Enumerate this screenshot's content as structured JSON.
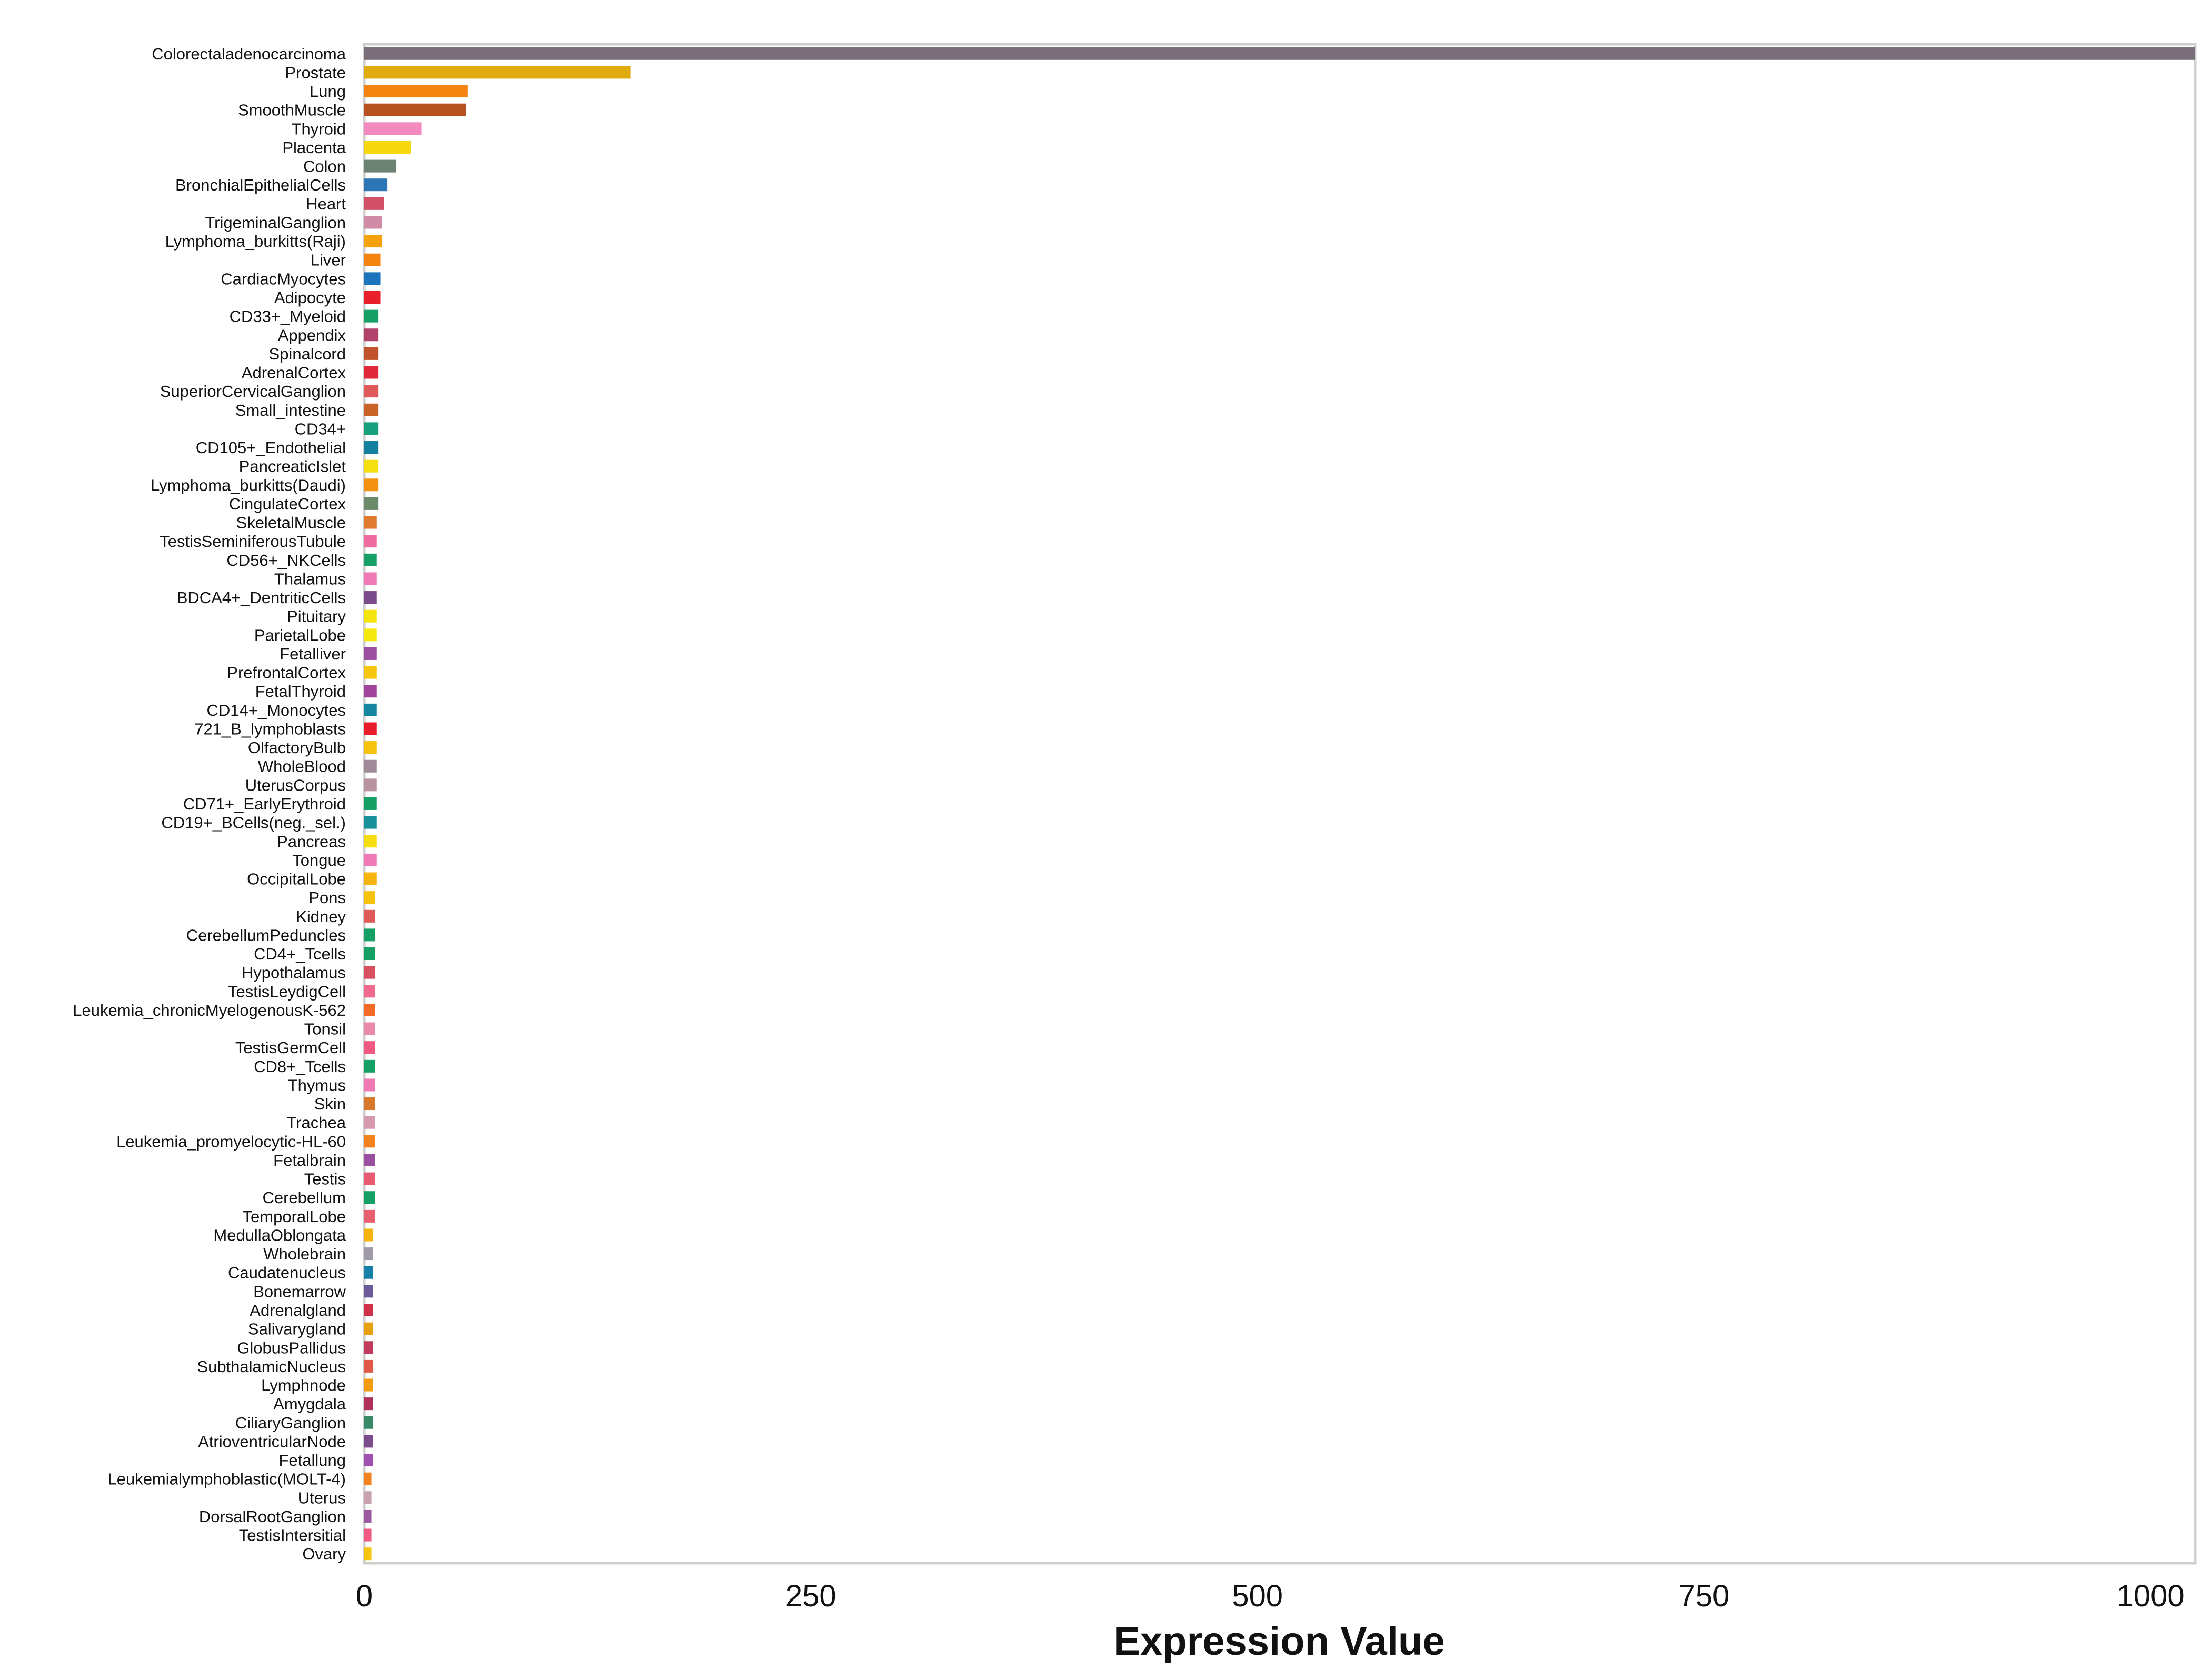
{
  "chart_data": {
    "type": "bar",
    "orientation": "horizontal",
    "title": "",
    "xlabel": "Expression Value",
    "ylabel": "",
    "xlim": [
      0,
      1025
    ],
    "xticks": [
      0,
      250,
      500,
      750,
      1000
    ],
    "xtick_labels": [
      "0",
      "250",
      "500",
      "750",
      "1000"
    ],
    "grid": false,
    "legend": "none",
    "categories": [
      "Colorectaladenocarcinoma",
      "Prostate",
      "Lung",
      "SmoothMuscle",
      "Thyroid",
      "Placenta",
      "Colon",
      "BronchialEpithelialCells",
      "Heart",
      "TrigeminalGanglion",
      "Lymphoma_burkitts(Raji)",
      "Liver",
      "CardiacMyocytes",
      "Adipocyte",
      "CD33+_Myeloid",
      "Appendix",
      "Spinalcord",
      "AdrenalCortex",
      "SuperiorCervicalGanglion",
      "Small_intestine",
      "CD34+",
      "CD105+_Endothelial",
      "PancreaticIslet",
      "Lymphoma_burkitts(Daudi)",
      "CingulateCortex",
      "SkeletalMuscle",
      "TestisSeminiferousTubule",
      "CD56+_NKCells",
      "Thalamus",
      "BDCA4+_DentriticCells",
      "Pituitary",
      "ParietalLobe",
      "Fetalliver",
      "PrefrontalCortex",
      "FetalThyroid",
      "CD14+_Monocytes",
      "721_B_lymphoblasts",
      "OlfactoryBulb",
      "WholeBlood",
      "UterusCorpus",
      "CD71+_EarlyErythroid",
      "CD19+_BCells(neg._sel.)",
      "Pancreas",
      "Tongue",
      "OccipitalLobe",
      "Pons",
      "Kidney",
      "CerebellumPeduncles",
      "CD4+_Tcells",
      "Hypothalamus",
      "TestisLeydigCell",
      "Leukemia_chronicMyelogenousK-562",
      "Tonsil",
      "TestisGermCell",
      "CD8+_Tcells",
      "Thymus",
      "Skin",
      "Trachea",
      "Leukemia_promyelocytic-HL-60",
      "Fetalbrain",
      "Testis",
      "Cerebellum",
      "TemporalLobe",
      "MedullaOblongata",
      "Wholebrain",
      "Caudatenucleus",
      "Bonemarrow",
      "Adrenalgland",
      "Salivarygland",
      "GlobusPallidus",
      "SubthalamicNucleus",
      "Lymphnode",
      "Amygdala",
      "CiliaryGanglion",
      "AtrioventricularNode",
      "Fetallung",
      "Leukemialymphoblastic(MOLT-4)",
      "Uterus",
      "DorsalRootGanglion",
      "TestisIntersitial",
      "Ovary"
    ],
    "values": [
      1025,
      149,
      58,
      57,
      32,
      26,
      18,
      13,
      11,
      10,
      10,
      9,
      9,
      9,
      8,
      8,
      8,
      8,
      8,
      8,
      8,
      8,
      8,
      8,
      8,
      7,
      7,
      7,
      7,
      7,
      7,
      7,
      7,
      7,
      7,
      7,
      7,
      7,
      7,
      7,
      7,
      7,
      7,
      7,
      7,
      6,
      6,
      6,
      6,
      6,
      6,
      6,
      6,
      6,
      6,
      6,
      6,
      6,
      6,
      6,
      6,
      6,
      6,
      5,
      5,
      5,
      5,
      5,
      5,
      5,
      5,
      5,
      5,
      5,
      5,
      5,
      4,
      4,
      4,
      4,
      4
    ],
    "colors": [
      "#7a6f78",
      "#e0ab0e",
      "#f4830f",
      "#b5501f",
      "#f28ac0",
      "#f5d80f",
      "#6c8273",
      "#2d76b5",
      "#d15068",
      "#cf8aa6",
      "#f6a20f",
      "#f4830f",
      "#1c75bc",
      "#e8202b",
      "#17a065",
      "#b0426b",
      "#c0532c",
      "#e0283a",
      "#e05a5a",
      "#c86428",
      "#17a07b",
      "#13809f",
      "#f5e00f",
      "#f4920f",
      "#6a8a6a",
      "#e07a30",
      "#f06ba0",
      "#17a065",
      "#f07ab5",
      "#7b4c8a",
      "#f5e50f",
      "#f5e80f",
      "#9b4fa0",
      "#f5c50f",
      "#a0449a",
      "#17879f",
      "#e81c2a",
      "#f5c20f",
      "#a08a98",
      "#b8929e",
      "#17a065",
      "#17909a",
      "#f5de0f",
      "#f07ab5",
      "#f5b40f",
      "#f5c20f",
      "#e05a5a",
      "#17a065",
      "#17a065",
      "#d85060",
      "#f06a90",
      "#f46b28",
      "#e88aa8",
      "#f05a80",
      "#17a065",
      "#f07ab5",
      "#d8782a",
      "#d89ab0",
      "#f4831f",
      "#9b4fa0",
      "#e85a70",
      "#17a065",
      "#e86070",
      "#f5b40f",
      "#a09aa8",
      "#1780a8",
      "#6a5a9a",
      "#d03048",
      "#e8a00f",
      "#c03c5a",
      "#e05848",
      "#f49a0f",
      "#b0305a",
      "#3a8a6a",
      "#7a4a8a",
      "#a050b0",
      "#f4831f",
      "#c8a0b0",
      "#9a5aa0",
      "#f05a80",
      "#f5c50f"
    ]
  }
}
